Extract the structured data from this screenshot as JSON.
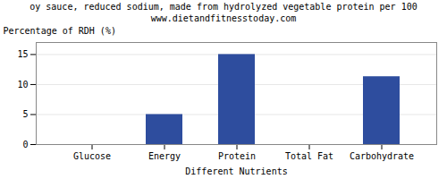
{
  "chart_data": {
    "type": "bar",
    "title": "oy sauce, reduced sodium, made from hydrolyzed vegetable protein per 100",
    "subtitle": "www.dietandfitnesstoday.com",
    "xlabel": "Different Nutrients",
    "ylabel": "Percentage of RDH (%)",
    "categories": [
      "Glucose",
      "Energy",
      "Protein",
      "Total Fat",
      "Carbohydrate"
    ],
    "values": [
      0,
      5,
      15,
      0,
      11.3
    ],
    "color": "#2e4d9e",
    "ylim": [
      0,
      17
    ],
    "yticks": [
      0,
      5,
      10,
      15
    ],
    "grid": true
  }
}
